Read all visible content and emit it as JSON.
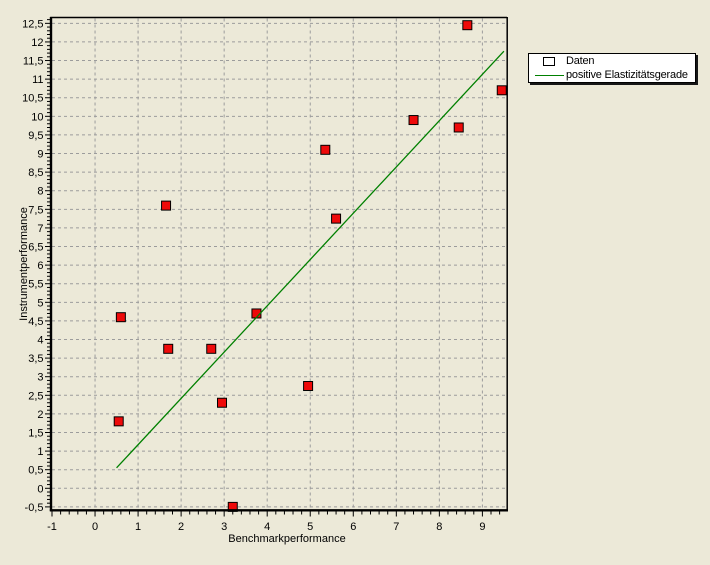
{
  "window": {
    "background_color": "#ece9d8"
  },
  "legend": {
    "entries": [
      {
        "label": "Daten",
        "marker": "red-square-icon",
        "color": "#ee0a0a"
      },
      {
        "label": "positive Elastizitätsgerade",
        "marker": "green-line-icon",
        "color": "#008000"
      }
    ]
  },
  "chart_data": {
    "type": "scatter",
    "xlabel": "Benchmarkperformance",
    "ylabel": "Instrumentperformance",
    "xlim": [
      -1,
      9.56
    ],
    "ylim": [
      -0.57,
      12.63
    ],
    "grid": true,
    "decimal_separator": ",",
    "x_tick_values": [
      -1,
      0,
      1,
      2,
      3,
      4,
      5,
      6,
      7,
      8,
      9
    ],
    "x_tick_labels": [
      "-1",
      "0",
      "1",
      "2",
      "3",
      "4",
      "5",
      "6",
      "7",
      "8",
      "9"
    ],
    "x_minor_step": 0.2,
    "y_tick_values": [
      -0.5,
      0,
      0.5,
      1,
      1.5,
      2,
      2.5,
      3,
      3.5,
      4,
      4.5,
      5,
      5.5,
      6,
      6.5,
      7,
      7.5,
      8,
      8.5,
      9,
      9.5,
      10,
      10.5,
      11,
      11.5,
      12,
      12.5
    ],
    "y_tick_labels": [
      "-0,5",
      "0",
      "0,5",
      "1",
      "1,5",
      "2",
      "2,5",
      "3",
      "3,5",
      "4",
      "4,5",
      "5",
      "5,5",
      "6",
      "6,5",
      "7",
      "7,5",
      "8",
      "8,5",
      "9",
      "9,5",
      "10",
      "10,5",
      "11",
      "11,5",
      "12",
      "12,5"
    ],
    "y_minor_step": 0.1,
    "x_grid_values": [
      0,
      1,
      2,
      3,
      4,
      5,
      6,
      7,
      8,
      9
    ],
    "colors": {
      "grid": "#9c9c9c",
      "axis": "#000000",
      "point_fill": "#ee0a0a",
      "point_stroke": "#000000",
      "line": "#008000",
      "text": "#000000"
    },
    "series": [
      {
        "name": "Daten",
        "type": "scatter",
        "marker": "square",
        "color": "#ee0a0a",
        "points": [
          [
            0.55,
            1.8
          ],
          [
            0.6,
            4.6
          ],
          [
            1.65,
            7.6
          ],
          [
            1.7,
            3.75
          ],
          [
            2.7,
            3.75
          ],
          [
            2.95,
            2.3
          ],
          [
            3.2,
            -0.5
          ],
          [
            3.75,
            4.7
          ],
          [
            4.95,
            2.75
          ],
          [
            5.35,
            9.1
          ],
          [
            5.6,
            7.25
          ],
          [
            7.4,
            9.9
          ],
          [
            8.45,
            9.7
          ],
          [
            8.65,
            12.45
          ],
          [
            9.45,
            10.7
          ]
        ]
      },
      {
        "name": "positive Elastizitätsgerade",
        "type": "line",
        "color": "#008000",
        "points": [
          [
            0.5,
            0.55
          ],
          [
            9.5,
            11.75
          ]
        ]
      }
    ]
  }
}
